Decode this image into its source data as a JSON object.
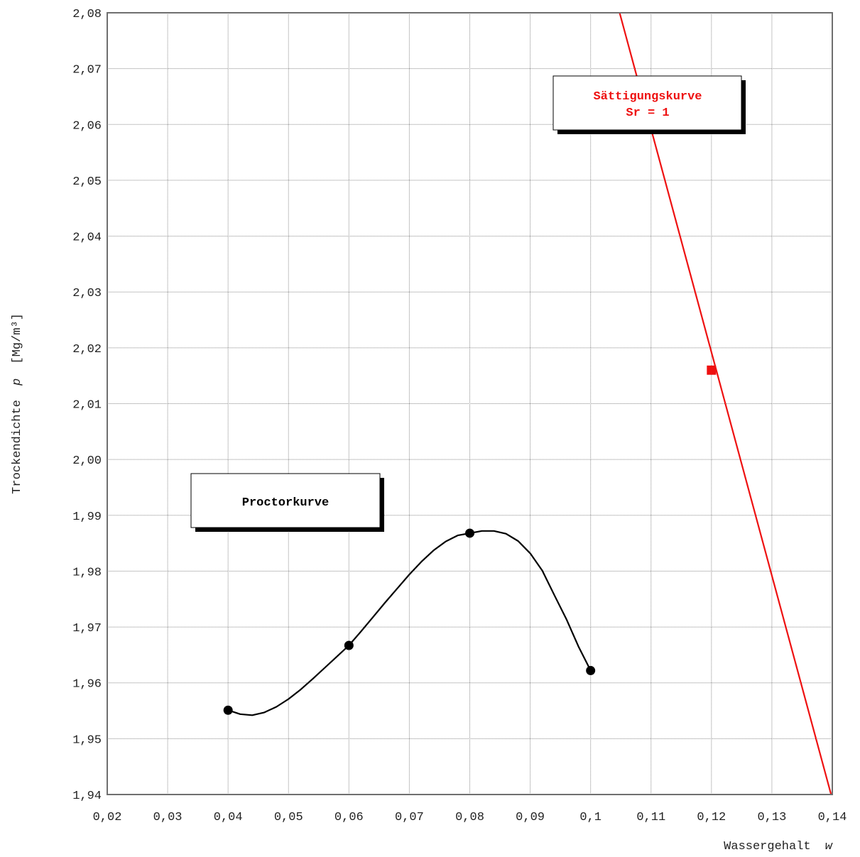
{
  "chart_data": {
    "type": "line",
    "xlabel": "Wassergehalt",
    "xlabel_symbol": "w",
    "ylabel": "Trockendichte",
    "ylabel_symbol": "p",
    "ylabel_unit": "[Mg/m³]",
    "xlim": [
      0.02,
      0.14
    ],
    "ylim": [
      1.94,
      2.08
    ],
    "x_ticks": [
      0.02,
      0.03,
      0.04,
      0.05,
      0.06,
      0.07,
      0.08,
      0.09,
      0.1,
      0.11,
      0.12,
      0.13,
      0.14
    ],
    "x_tick_labels": [
      "0,02",
      "0,03",
      "0,04",
      "0,05",
      "0,06",
      "0,07",
      "0,08",
      "0,09",
      "0,1",
      "0,11",
      "0,12",
      "0,13",
      "0,14"
    ],
    "y_ticks": [
      1.94,
      1.95,
      1.96,
      1.97,
      1.98,
      1.99,
      2.0,
      2.01,
      2.02,
      2.03,
      2.04,
      2.05,
      2.06,
      2.07,
      2.08
    ],
    "y_tick_labels": [
      "1,94",
      "1,95",
      "1,96",
      "1,97",
      "1,98",
      "1,99",
      "2,00",
      "2,01",
      "2,02",
      "2,03",
      "2,04",
      "2,05",
      "2,06",
      "2,07",
      "2,08"
    ],
    "grid": true,
    "series": [
      {
        "name": "Proctorkurve",
        "color": "#000000",
        "marker": "circle",
        "points": [
          {
            "x": 0.04,
            "y": 1.9551
          },
          {
            "x": 0.06,
            "y": 1.9667
          },
          {
            "x": 0.08,
            "y": 1.9868
          },
          {
            "x": 0.1,
            "y": 1.9622
          }
        ],
        "curve": [
          {
            "x": 0.04,
            "y": 1.9551
          },
          {
            "x": 0.042,
            "y": 1.9544
          },
          {
            "x": 0.044,
            "y": 1.9542
          },
          {
            "x": 0.046,
            "y": 1.9547
          },
          {
            "x": 0.048,
            "y": 1.9557
          },
          {
            "x": 0.05,
            "y": 1.9571
          },
          {
            "x": 0.052,
            "y": 1.9588
          },
          {
            "x": 0.054,
            "y": 1.9607
          },
          {
            "x": 0.056,
            "y": 1.9627
          },
          {
            "x": 0.058,
            "y": 1.9647
          },
          {
            "x": 0.06,
            "y": 1.9667
          },
          {
            "x": 0.062,
            "y": 1.9692
          },
          {
            "x": 0.064,
            "y": 1.9718
          },
          {
            "x": 0.066,
            "y": 1.9744
          },
          {
            "x": 0.068,
            "y": 1.9769
          },
          {
            "x": 0.07,
            "y": 1.9794
          },
          {
            "x": 0.072,
            "y": 1.9817
          },
          {
            "x": 0.074,
            "y": 1.9837
          },
          {
            "x": 0.076,
            "y": 1.9853
          },
          {
            "x": 0.078,
            "y": 1.9864
          },
          {
            "x": 0.08,
            "y": 1.9868
          },
          {
            "x": 0.082,
            "y": 1.9872
          },
          {
            "x": 0.084,
            "y": 1.9872
          },
          {
            "x": 0.086,
            "y": 1.9867
          },
          {
            "x": 0.088,
            "y": 1.9854
          },
          {
            "x": 0.09,
            "y": 1.9832
          },
          {
            "x": 0.092,
            "y": 1.9801
          },
          {
            "x": 0.094,
            "y": 1.9757
          },
          {
            "x": 0.096,
            "y": 1.9714
          },
          {
            "x": 0.098,
            "y": 1.9665
          },
          {
            "x": 0.1,
            "y": 1.9622
          }
        ]
      },
      {
        "name": "Sättigungskurve",
        "name_line2": "Sr = 1",
        "color": "#ee1111",
        "marker": "square",
        "line": [
          {
            "x": 0.1048,
            "y": 2.08
          },
          {
            "x": 0.1398,
            "y": 1.94
          }
        ],
        "points": [
          {
            "x": 0.12,
            "y": 2.016
          }
        ]
      }
    ],
    "annotations": [
      {
        "text": "Proctorkurve",
        "series": "Proctorkurve",
        "anchor_x": 0.0575,
        "anchor_y": 1.9925
      },
      {
        "text": "Sättigungskurve",
        "text_line2": "Sr = 1",
        "series": "Sättigungskurve",
        "anchor_x": 0.1115,
        "anchor_y": 2.0655
      }
    ]
  }
}
